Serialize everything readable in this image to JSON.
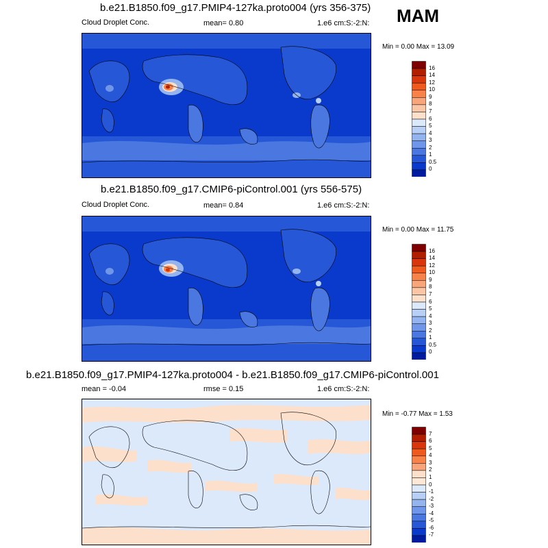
{
  "season": "MAM",
  "panels": [
    {
      "id": "p1",
      "title": "b.e21.B1850.f09_g17.PMIP4-127ka.proto004 (yrs 356-375)",
      "left_label": "Cloud Droplet Conc.",
      "center_label": "mean=   0.80",
      "units": "1.e6 cm:S:-2:N:",
      "minmax": "Min =   0.00 Max =  13.09",
      "colorbar_labels": [
        "16",
        "14",
        "12",
        "10",
        "9",
        "8",
        "7",
        "6",
        "5",
        "4",
        "3",
        "2",
        "1",
        "0.5",
        "0"
      ],
      "colorbar_colors": [
        "#7f0000",
        "#b11e00",
        "#d9360e",
        "#ef5a1f",
        "#f7824a",
        "#f9a57c",
        "#fbc6a6",
        "#fde0cb",
        "#dce9fa",
        "#b8d0f5",
        "#93b4ee",
        "#6f96e8",
        "#4a78e0",
        "#2557d6",
        "#0a3acb",
        "#001c9e"
      ]
    },
    {
      "id": "p2",
      "title": "b.e21.B1850.f09_g17.CMIP6-piControl.001 (yrs 556-575)",
      "left_label": "Cloud Droplet Conc.",
      "center_label": "mean=   0.84",
      "units": "1.e6 cm:S:-2:N:",
      "minmax": "Min =   0.00 Max =  11.75",
      "colorbar_labels": [
        "16",
        "14",
        "12",
        "10",
        "9",
        "8",
        "7",
        "6",
        "5",
        "4",
        "3",
        "2",
        "1",
        "0.5",
        "0"
      ],
      "colorbar_colors": [
        "#7f0000",
        "#b11e00",
        "#d9360e",
        "#ef5a1f",
        "#f7824a",
        "#f9a57c",
        "#fbc6a6",
        "#fde0cb",
        "#dce9fa",
        "#b8d0f5",
        "#93b4ee",
        "#6f96e8",
        "#4a78e0",
        "#2557d6",
        "#0a3acb",
        "#001c9e"
      ]
    },
    {
      "id": "p3",
      "title": "b.e21.B1850.f09_g17.PMIP4-127ka.proto004 - b.e21.B1850.f09_g17.CMIP6-piControl.001",
      "left_label": "mean =  -0.04",
      "center_label": "rmse =   0.15",
      "units": "1.e6 cm:S:-2:N:",
      "minmax": "Min =  -0.77 Max =   1.53",
      "colorbar_labels": [
        "7",
        "6",
        "5",
        "4",
        "3",
        "2",
        "1",
        "0",
        "-1",
        "-2",
        "-3",
        "-4",
        "-5",
        "-6",
        "-7"
      ],
      "colorbar_colors": [
        "#7f0000",
        "#b11e00",
        "#d9360e",
        "#ef5a1f",
        "#f7824a",
        "#f9a57c",
        "#fde0cb",
        "#fde8d8",
        "#dce9fa",
        "#b8d0f5",
        "#93b4ee",
        "#6f96e8",
        "#4a78e0",
        "#2557d6",
        "#0a3acb",
        "#001c9e"
      ]
    }
  ],
  "chart_data": [
    {
      "type": "heatmap",
      "title": "b.e21.B1850.f09_g17.PMIP4-127ka.proto004 (yrs 356-375)",
      "variable": "Cloud Droplet Conc.",
      "units": "1.e6 cm:S:-2:N:",
      "mean": 0.8,
      "min": 0.0,
      "max": 13.09,
      "levels": [
        0,
        0.5,
        1,
        2,
        3,
        4,
        5,
        6,
        7,
        8,
        9,
        10,
        12,
        14,
        16
      ]
    },
    {
      "type": "heatmap",
      "title": "b.e21.B1850.f09_g17.CMIP6-piControl.001 (yrs 556-575)",
      "variable": "Cloud Droplet Conc.",
      "units": "1.e6 cm:S:-2:N:",
      "mean": 0.84,
      "min": 0.0,
      "max": 11.75,
      "levels": [
        0,
        0.5,
        1,
        2,
        3,
        4,
        5,
        6,
        7,
        8,
        9,
        10,
        12,
        14,
        16
      ]
    },
    {
      "type": "heatmap",
      "title": "b.e21.B1850.f09_g17.PMIP4-127ka.proto004 - b.e21.B1850.f09_g17.CMIP6-piControl.001",
      "units": "1.e6 cm:S:-2:N:",
      "mean": -0.04,
      "rmse": 0.15,
      "min": -0.77,
      "max": 1.53,
      "levels": [
        -7,
        -6,
        -5,
        -4,
        -3,
        -2,
        -1,
        0,
        1,
        2,
        3,
        4,
        5,
        6,
        7
      ]
    }
  ]
}
